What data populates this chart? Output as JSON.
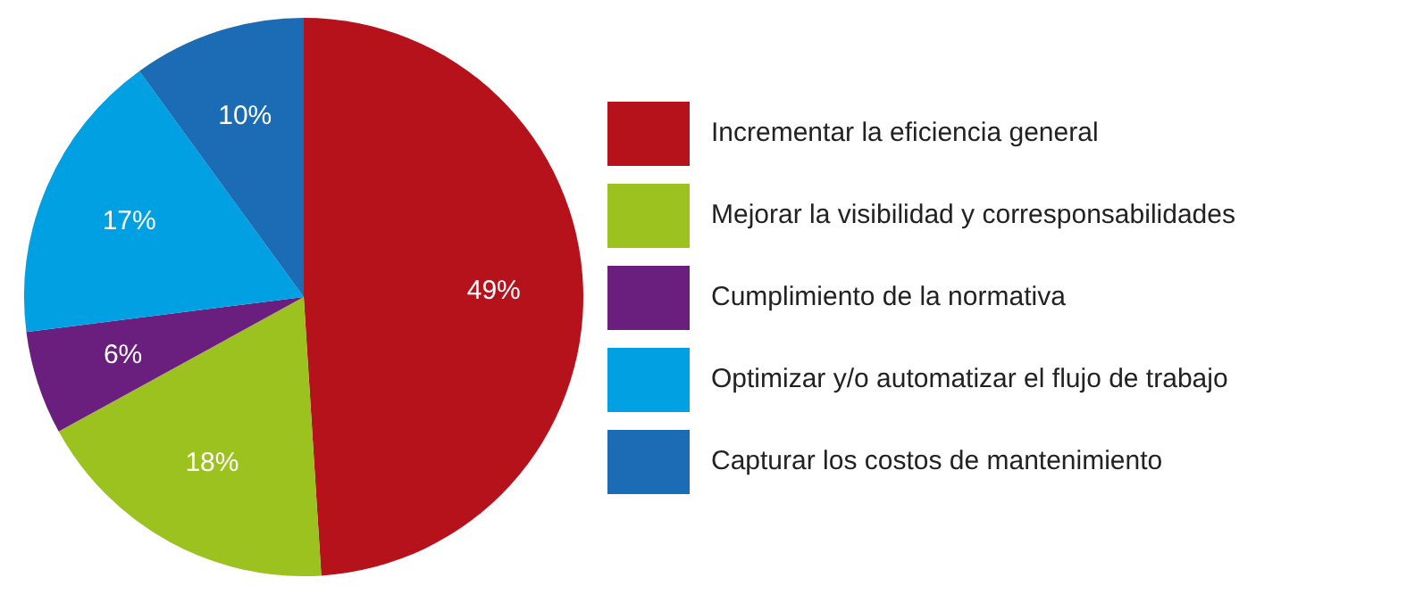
{
  "chart_data": {
    "type": "pie",
    "categories": [
      "Incrementar la eficiencia general",
      "Mejorar la visibilidad y corresponsabilidades",
      "Cumplimiento de la normativa",
      "Optimizar y/o automatizar el flujo de trabajo",
      "Capturar los costos de mantenimiento"
    ],
    "values": [
      49,
      18,
      6,
      17,
      10
    ],
    "colors": [
      "#b5121b",
      "#9bc21f",
      "#6a1f7e",
      "#00a0e3",
      "#1b6cb5"
    ],
    "value_labels": [
      "49%",
      "18%",
      "6%",
      "17%",
      "10%"
    ],
    "legend": "right"
  }
}
